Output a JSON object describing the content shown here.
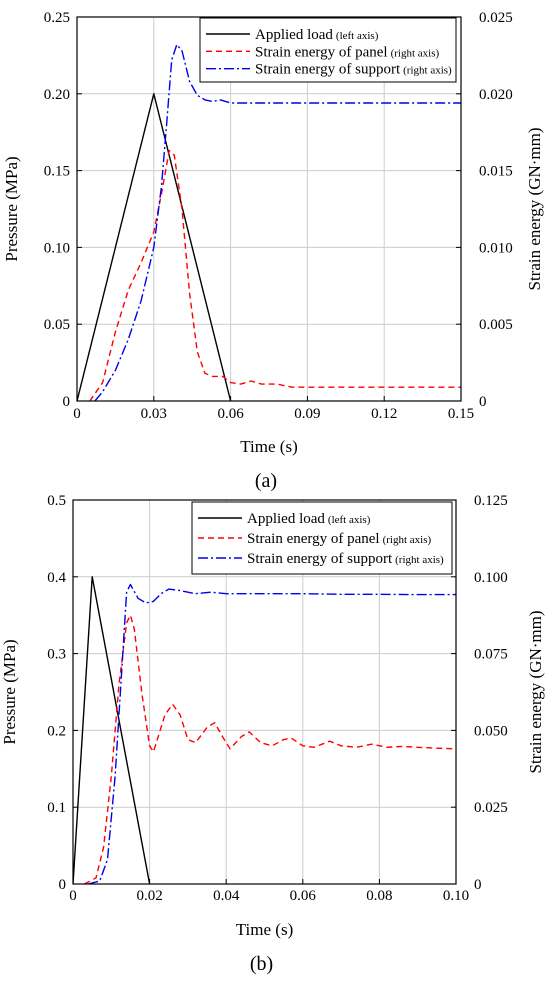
{
  "chart_data": [
    {
      "type": "line",
      "panel_label": "(a)",
      "xlabel": "Time (s)",
      "ylabel_left": "Pressure (MPa)",
      "ylabel_right": "Strain energy (GN·mm)",
      "xlim": [
        0,
        0.15
      ],
      "ylim_left": [
        0,
        0.25
      ],
      "ylim_right": [
        0,
        0.025
      ],
      "x_ticks": [
        "0",
        "0.03",
        "0.06",
        "0.09",
        "0.12",
        "0.15"
      ],
      "y_left_ticks": [
        "0",
        "0.05",
        "0.10",
        "0.15",
        "0.20",
        "0.25"
      ],
      "y_right_ticks": [
        "0",
        "0.005",
        "0.010",
        "0.015",
        "0.020",
        "0.025"
      ],
      "grid": true,
      "legend_position": "top-right",
      "series": [
        {
          "name": "Applied load",
          "note": "(left axis)",
          "axis": "left",
          "color": "#000000",
          "style": "solid",
          "points": [
            [
              0,
              0
            ],
            [
              0.03,
              0.2
            ],
            [
              0.06,
              0
            ]
          ]
        },
        {
          "name": "Strain energy of panel",
          "note": "(right axis)",
          "axis": "right",
          "color": "#ff0000",
          "style": "dashed",
          "points": [
            [
              0.005,
              0
            ],
            [
              0.01,
              0.0012
            ],
            [
              0.015,
              0.0045
            ],
            [
              0.02,
              0.0072
            ],
            [
              0.025,
              0.009
            ],
            [
              0.03,
              0.011
            ],
            [
              0.033,
              0.0135
            ],
            [
              0.036,
              0.0163
            ],
            [
              0.038,
              0.016
            ],
            [
              0.041,
              0.0125
            ],
            [
              0.044,
              0.007
            ],
            [
              0.047,
              0.0032
            ],
            [
              0.05,
              0.0018
            ],
            [
              0.053,
              0.0016
            ],
            [
              0.057,
              0.0016
            ],
            [
              0.06,
              0.0012
            ],
            [
              0.064,
              0.0011
            ],
            [
              0.068,
              0.0013
            ],
            [
              0.072,
              0.0011
            ],
            [
              0.078,
              0.0011
            ],
            [
              0.084,
              0.0009
            ],
            [
              0.09,
              0.0009
            ],
            [
              0.1,
              0.0009
            ],
            [
              0.11,
              0.0009
            ],
            [
              0.12,
              0.0009
            ],
            [
              0.135,
              0.0009
            ],
            [
              0.15,
              0.0009
            ]
          ]
        },
        {
          "name": "Strain energy of support",
          "note": "(right axis)",
          "axis": "right",
          "color": "#0000ee",
          "style": "dashdot",
          "points": [
            [
              0.007,
              0
            ],
            [
              0.01,
              0.0006
            ],
            [
              0.015,
              0.002
            ],
            [
              0.02,
              0.004
            ],
            [
              0.025,
              0.0065
            ],
            [
              0.03,
              0.01
            ],
            [
              0.033,
              0.014
            ],
            [
              0.035,
              0.018
            ],
            [
              0.037,
              0.0222
            ],
            [
              0.039,
              0.0232
            ],
            [
              0.041,
              0.0228
            ],
            [
              0.044,
              0.0208
            ],
            [
              0.047,
              0.0199
            ],
            [
              0.05,
              0.0196
            ],
            [
              0.053,
              0.0195
            ],
            [
              0.056,
              0.0196
            ],
            [
              0.06,
              0.0194
            ],
            [
              0.07,
              0.0194
            ],
            [
              0.08,
              0.0194
            ],
            [
              0.1,
              0.0194
            ],
            [
              0.12,
              0.0194
            ],
            [
              0.15,
              0.0194
            ]
          ]
        }
      ]
    },
    {
      "type": "line",
      "panel_label": "(b)",
      "xlabel": "Time (s)",
      "ylabel_left": "Pressure (MPa)",
      "ylabel_right": "Strain energy (GN·mm)",
      "xlim": [
        0,
        0.1
      ],
      "ylim_left": [
        0,
        0.5
      ],
      "ylim_right": [
        0,
        0.125
      ],
      "x_ticks": [
        "0",
        "0.02",
        "0.04",
        "0.06",
        "0.08",
        "0.10"
      ],
      "y_left_ticks": [
        "0",
        "0.1",
        "0.2",
        "0.3",
        "0.4",
        "0.5"
      ],
      "y_right_ticks": [
        "0",
        "0.025",
        "0.050",
        "0.075",
        "0.100",
        "0.125"
      ],
      "grid": true,
      "legend_position": "top-right",
      "series": [
        {
          "name": "Applied load",
          "note": "(left axis)",
          "axis": "left",
          "color": "#000000",
          "style": "solid",
          "points": [
            [
              0,
              0
            ],
            [
              0.005,
              0.4
            ],
            [
              0.02,
              0
            ]
          ]
        },
        {
          "name": "Strain energy of panel",
          "note": "(right axis)",
          "axis": "right",
          "color": "#ff0000",
          "style": "dashed",
          "points": [
            [
              0.003,
              0
            ],
            [
              0.006,
              0.002
            ],
            [
              0.008,
              0.012
            ],
            [
              0.01,
              0.035
            ],
            [
              0.012,
              0.065
            ],
            [
              0.014,
              0.085
            ],
            [
              0.015,
              0.0875
            ],
            [
              0.016,
              0.083
            ],
            [
              0.018,
              0.062
            ],
            [
              0.02,
              0.045
            ],
            [
              0.021,
              0.043
            ],
            [
              0.022,
              0.047
            ],
            [
              0.024,
              0.055
            ],
            [
              0.026,
              0.0585
            ],
            [
              0.028,
              0.055
            ],
            [
              0.03,
              0.047
            ],
            [
              0.032,
              0.046
            ],
            [
              0.035,
              0.051
            ],
            [
              0.037,
              0.0525
            ],
            [
              0.039,
              0.048
            ],
            [
              0.041,
              0.044
            ],
            [
              0.044,
              0.048
            ],
            [
              0.046,
              0.0495
            ],
            [
              0.049,
              0.046
            ],
            [
              0.052,
              0.045
            ],
            [
              0.055,
              0.047
            ],
            [
              0.057,
              0.0475
            ],
            [
              0.06,
              0.045
            ],
            [
              0.063,
              0.0445
            ],
            [
              0.067,
              0.0465
            ],
            [
              0.07,
              0.045
            ],
            [
              0.074,
              0.0445
            ],
            [
              0.078,
              0.0455
            ],
            [
              0.082,
              0.0445
            ],
            [
              0.086,
              0.0448
            ],
            [
              0.09,
              0.0445
            ],
            [
              0.095,
              0.0442
            ],
            [
              0.1,
              0.044
            ]
          ]
        },
        {
          "name": "Strain energy of support",
          "note": "(right axis)",
          "axis": "right",
          "color": "#0000ee",
          "style": "dashdot",
          "points": [
            [
              0.004,
              0
            ],
            [
              0.007,
              0.001
            ],
            [
              0.009,
              0.008
            ],
            [
              0.011,
              0.035
            ],
            [
              0.013,
              0.075
            ],
            [
              0.014,
              0.095
            ],
            [
              0.015,
              0.0975
            ],
            [
              0.017,
              0.093
            ],
            [
              0.019,
              0.0915
            ],
            [
              0.021,
              0.092
            ],
            [
              0.023,
              0.0945
            ],
            [
              0.025,
              0.096
            ],
            [
              0.028,
              0.0955
            ],
            [
              0.032,
              0.0945
            ],
            [
              0.036,
              0.095
            ],
            [
              0.04,
              0.0945
            ],
            [
              0.05,
              0.0945
            ],
            [
              0.06,
              0.0945
            ],
            [
              0.07,
              0.0943
            ],
            [
              0.08,
              0.0943
            ],
            [
              0.09,
              0.0942
            ],
            [
              0.1,
              0.0942
            ]
          ]
        }
      ]
    }
  ]
}
